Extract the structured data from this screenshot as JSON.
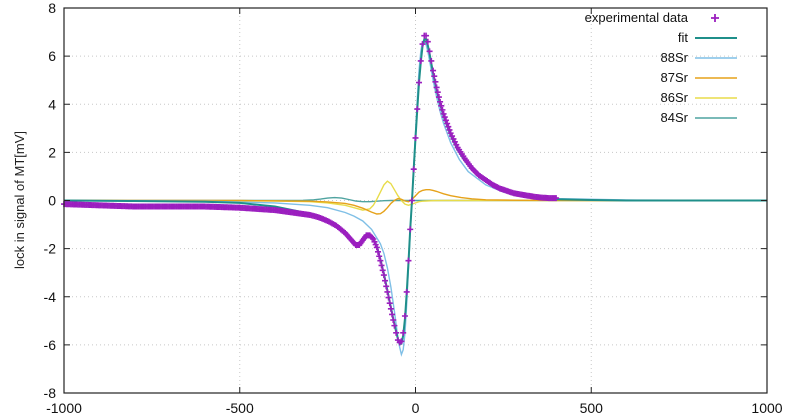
{
  "chart_data": {
    "type": "line",
    "title": "",
    "xlabel": "",
    "ylabel": "lock in signal of MT[mV]",
    "xlim": [
      -1000,
      1000
    ],
    "ylim": [
      -8,
      8
    ],
    "x_ticks": [
      -1000,
      -500,
      0,
      500,
      1000
    ],
    "y_ticks": [
      -8,
      -6,
      -4,
      -2,
      0,
      2,
      4,
      6,
      8
    ],
    "grid": true,
    "legend_position": "top-right",
    "series": [
      {
        "name": "experimental data",
        "style": "markers",
        "marker": "+",
        "color": "#9b1fbf",
        "x": [
          -1000,
          -900,
          -800,
          -700,
          -600,
          -500,
          -400,
          -350,
          -300,
          -275,
          -250,
          -225,
          -200,
          -185,
          -170,
          -160,
          -150,
          -140,
          -130,
          -120,
          -110,
          -100,
          -90,
          -80,
          -70,
          -60,
          -55,
          -50,
          -45,
          -40,
          -35,
          -30,
          -25,
          -20,
          -15,
          -10,
          -5,
          0,
          5,
          10,
          15,
          20,
          25,
          30,
          35,
          40,
          45,
          50,
          60,
          70,
          80,
          90,
          100,
          120,
          140,
          160,
          180,
          200,
          220,
          240,
          260,
          280,
          300,
          320,
          340,
          360,
          380,
          400
        ],
        "y": [
          -0.15,
          -0.2,
          -0.25,
          -0.25,
          -0.25,
          -0.3,
          -0.4,
          -0.5,
          -0.6,
          -0.7,
          -0.85,
          -1.05,
          -1.35,
          -1.6,
          -1.85,
          -1.85,
          -1.65,
          -1.45,
          -1.45,
          -1.6,
          -1.95,
          -2.5,
          -3.1,
          -3.8,
          -4.5,
          -5.2,
          -5.5,
          -5.8,
          -5.9,
          -5.85,
          -5.5,
          -4.8,
          -3.8,
          -2.5,
          -1.2,
          0.0,
          1.3,
          2.6,
          3.8,
          4.9,
          5.8,
          6.5,
          6.85,
          6.85,
          6.6,
          6.2,
          5.8,
          5.4,
          4.7,
          4.1,
          3.6,
          3.2,
          2.8,
          2.2,
          1.75,
          1.35,
          1.05,
          0.85,
          0.65,
          0.5,
          0.4,
          0.3,
          0.25,
          0.2,
          0.15,
          0.12,
          0.1,
          0.1
        ]
      },
      {
        "name": "fit",
        "style": "line",
        "color": "#1f8f8a",
        "x": [
          -1000,
          -800,
          -600,
          -500,
          -400,
          -350,
          -300,
          -275,
          -250,
          -225,
          -200,
          -185,
          -170,
          -160,
          -150,
          -140,
          -130,
          -120,
          -110,
          -100,
          -90,
          -80,
          -70,
          -60,
          -50,
          -45,
          -40,
          -35,
          -30,
          -25,
          -20,
          -15,
          -10,
          -5,
          0,
          5,
          10,
          15,
          20,
          25,
          30,
          35,
          40,
          45,
          50,
          60,
          70,
          80,
          90,
          100,
          120,
          140,
          160,
          180,
          200,
          220,
          240,
          260,
          280,
          300,
          350,
          400,
          500,
          600,
          800,
          1000
        ],
        "y": [
          0,
          -0.02,
          -0.05,
          -0.1,
          -0.25,
          -0.4,
          -0.55,
          -0.65,
          -0.8,
          -1.0,
          -1.3,
          -1.55,
          -1.8,
          -1.8,
          -1.6,
          -1.4,
          -1.4,
          -1.55,
          -1.9,
          -2.45,
          -3.05,
          -3.75,
          -4.45,
          -5.15,
          -5.75,
          -5.95,
          -5.95,
          -5.6,
          -4.9,
          -3.85,
          -2.55,
          -1.2,
          0.0,
          1.3,
          2.6,
          3.8,
          4.9,
          5.75,
          6.4,
          6.7,
          6.7,
          6.45,
          6.1,
          5.7,
          5.3,
          4.6,
          4.0,
          3.5,
          3.1,
          2.7,
          2.1,
          1.65,
          1.3,
          1.0,
          0.8,
          0.6,
          0.45,
          0.35,
          0.25,
          0.2,
          0.1,
          0.05,
          0.02,
          0,
          0,
          0
        ]
      },
      {
        "name": "88Sr",
        "style": "line",
        "color": "#7fbfe6",
        "x": [
          -1000,
          -600,
          -400,
          -300,
          -250,
          -200,
          -175,
          -150,
          -125,
          -100,
          -90,
          -80,
          -70,
          -60,
          -50,
          -45,
          -40,
          -35,
          -30,
          -25,
          -20,
          -15,
          -10,
          -5,
          0,
          5,
          10,
          15,
          20,
          25,
          30,
          35,
          40,
          50,
          60,
          70,
          80,
          100,
          125,
          150,
          200,
          250,
          300,
          400,
          600,
          1000
        ],
        "y": [
          0,
          -0.03,
          -0.1,
          -0.2,
          -0.3,
          -0.5,
          -0.65,
          -0.85,
          -1.2,
          -1.8,
          -2.2,
          -2.8,
          -3.6,
          -4.6,
          -5.7,
          -6.1,
          -6.4,
          -6.2,
          -5.5,
          -4.3,
          -2.8,
          -1.4,
          0.0,
          1.4,
          2.8,
          4.2,
          5.4,
          6.2,
          6.6,
          6.65,
          6.5,
          6.2,
          5.8,
          5.0,
          4.3,
          3.7,
          3.2,
          2.4,
          1.7,
          1.2,
          0.65,
          0.35,
          0.2,
          0.08,
          0.02,
          0
        ]
      },
      {
        "name": "87Sr",
        "style": "line",
        "color": "#e6a21a",
        "x": [
          -1000,
          -500,
          -300,
          -250,
          -200,
          -175,
          -150,
          -125,
          -110,
          -100,
          -90,
          -80,
          -70,
          -60,
          -50,
          -40,
          -30,
          -20,
          -10,
          0,
          10,
          20,
          30,
          40,
          50,
          60,
          70,
          80,
          100,
          130,
          160,
          200,
          300,
          500,
          1000
        ],
        "y": [
          0,
          0,
          -0.03,
          -0.06,
          -0.12,
          -0.2,
          -0.32,
          -0.48,
          -0.56,
          -0.55,
          -0.45,
          -0.3,
          -0.12,
          0.0,
          0.08,
          0.05,
          -0.02,
          -0.05,
          0.05,
          0.2,
          0.35,
          0.42,
          0.45,
          0.45,
          0.42,
          0.38,
          0.33,
          0.28,
          0.2,
          0.12,
          0.07,
          0.03,
          0.01,
          0,
          0
        ]
      },
      {
        "name": "86Sr",
        "style": "line",
        "color": "#e8dc4a",
        "x": [
          -1000,
          -400,
          -300,
          -250,
          -200,
          -175,
          -150,
          -130,
          -120,
          -110,
          -100,
          -90,
          -80,
          -70,
          -60,
          -50,
          -40,
          -30,
          -20,
          -10,
          0,
          10,
          20,
          30,
          50,
          80,
          120,
          200,
          400,
          1000
        ],
        "y": [
          0,
          -0.02,
          -0.05,
          -0.1,
          -0.2,
          -0.3,
          -0.4,
          -0.35,
          -0.2,
          0.05,
          0.35,
          0.65,
          0.8,
          0.7,
          0.45,
          0.2,
          0.0,
          -0.15,
          -0.2,
          -0.15,
          -0.1,
          -0.05,
          -0.03,
          -0.02,
          -0.01,
          0,
          0,
          0,
          0,
          0
        ]
      },
      {
        "name": "84Sr",
        "style": "line",
        "color": "#4fa3a0",
        "x": [
          -1000,
          -400,
          -320,
          -290,
          -270,
          -250,
          -230,
          -210,
          -190,
          -170,
          -150,
          -130,
          -110,
          -90,
          -70,
          -50,
          -30,
          -10,
          0,
          50,
          200,
          1000
        ],
        "y": [
          0,
          0,
          0.01,
          0.03,
          0.06,
          0.1,
          0.12,
          0.1,
          0.04,
          -0.02,
          -0.05,
          -0.05,
          -0.03,
          -0.01,
          0,
          0,
          0,
          0,
          0,
          0,
          0,
          0
        ]
      }
    ]
  }
}
